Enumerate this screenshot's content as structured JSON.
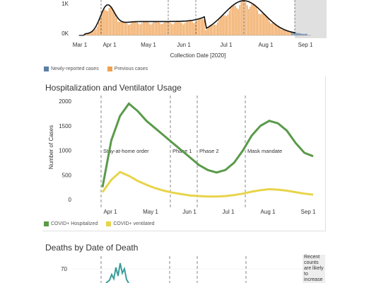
{
  "cases_chart": {
    "chart_data": {
      "type": "bar",
      "xlabel": "Collection Date [2020]",
      "y_ticks": [
        "0K",
        "1K"
      ],
      "x_ticks": [
        "Mar 1",
        "Apr 1",
        "May 1",
        "Jun 1",
        "Jul 1",
        "Aug 1",
        "Sep 1"
      ],
      "legend": [
        {
          "name": "Newly-reported cases",
          "color": "#5b7fa6"
        },
        {
          "name": "Previous cases",
          "color": "#f0a050"
        }
      ],
      "trend_color": "#111111"
    }
  },
  "hosp_chart": {
    "title": "Hospitalization and Ventilator Usage",
    "chart_data": {
      "type": "line",
      "ylabel": "Number of Cases",
      "y_ticks": [
        0,
        500,
        1000,
        1500,
        2000
      ],
      "ylim": [
        0,
        2000
      ],
      "x_ticks": [
        "Apr 1",
        "May 1",
        "Jun 1",
        "Jul 1",
        "Aug 1",
        "Sep 1"
      ],
      "annotations": [
        "Stay-at-home order",
        "Phase 1",
        "Phase 2",
        "Mask mandate"
      ],
      "series": [
        {
          "name": "COVID+ Hospitalized",
          "color": "#5a9a4a",
          "values": [
            250,
            1200,
            1700,
            1950,
            1800,
            1600,
            1450,
            1300,
            1150,
            1000,
            850,
            700,
            600,
            550,
            600,
            750,
            1000,
            1300,
            1500,
            1600,
            1550,
            1400,
            1150,
            950,
            880
          ]
        },
        {
          "name": "COVID+ ventilated",
          "color": "#e8d44a",
          "values": [
            150,
            400,
            560,
            480,
            380,
            300,
            230,
            180,
            140,
            110,
            80,
            70,
            60,
            60,
            70,
            90,
            120,
            160,
            190,
            210,
            200,
            180,
            150,
            120,
            100
          ]
        }
      ]
    }
  },
  "deaths_chart": {
    "title": "Deaths by Date of Death",
    "chart_data": {
      "type": "line",
      "y_ticks": [
        70
      ],
      "series": [
        {
          "color": "#3a9e9a"
        }
      ]
    },
    "note": "Recent counts are likely to increase"
  }
}
